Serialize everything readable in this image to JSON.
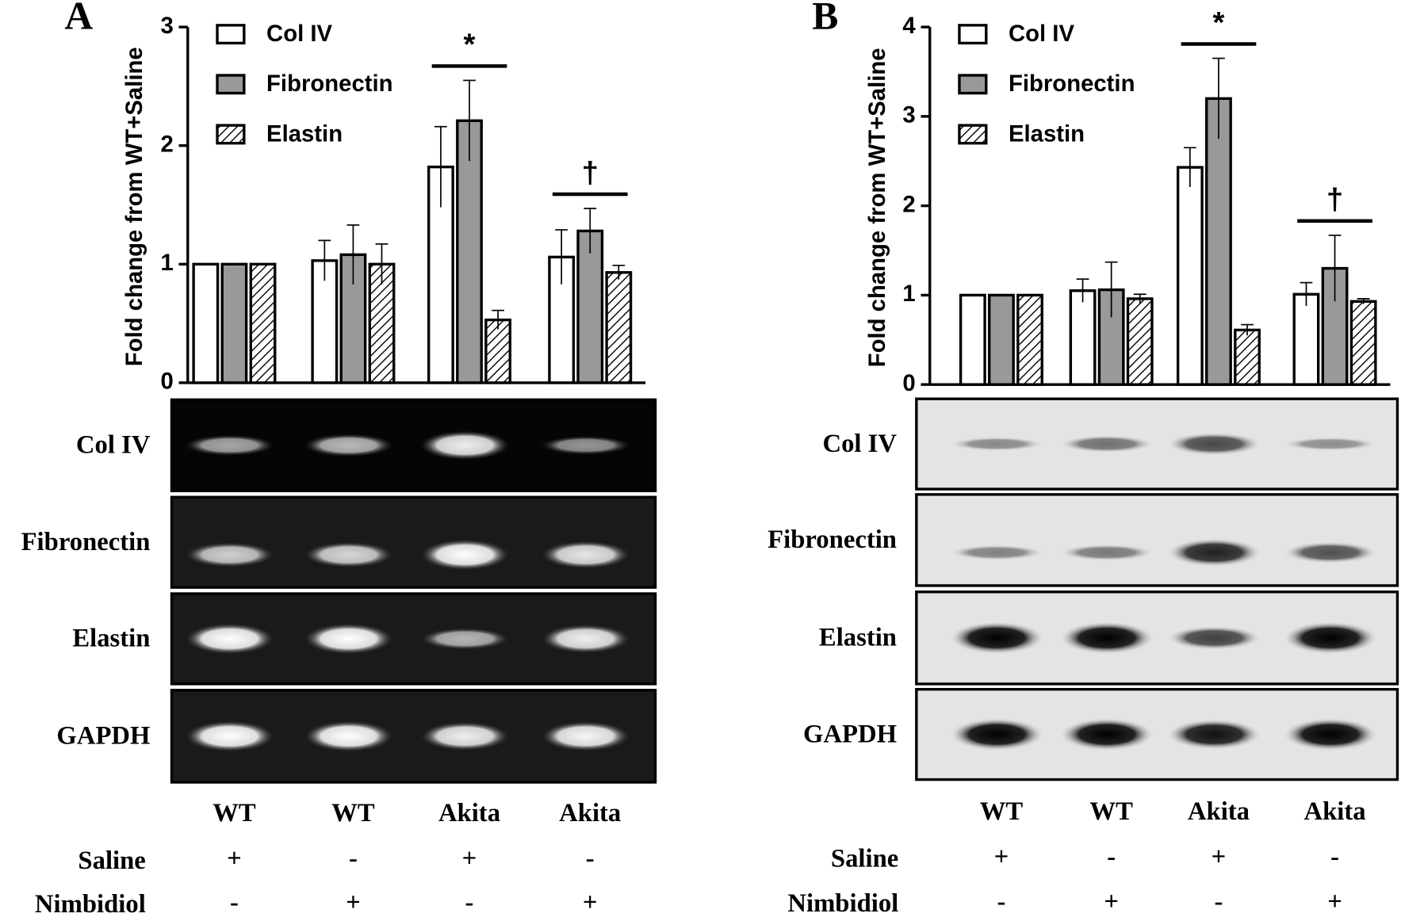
{
  "chart_data": [
    {
      "type": "bar",
      "panel_label": "A",
      "ylabel": "Fold change from WT+Saline",
      "categories": [
        "WT",
        "WT",
        "Akita",
        "Akita"
      ],
      "series": [
        {
          "name": "Col IV",
          "color": "#ffffff",
          "values": [
            1,
            1.03,
            1.82,
            1.06
          ],
          "errors": [
            0,
            0.17,
            0.34,
            0.23
          ]
        },
        {
          "name": "Fibronectin",
          "color": "#999999",
          "values": [
            1,
            1.08,
            2.21,
            1.28
          ],
          "errors": [
            0,
            0.25,
            0.34,
            0.19
          ]
        },
        {
          "name": "Elastin",
          "color": "#ffffff",
          "pattern": "hatch",
          "values": [
            1,
            1.0,
            0.53,
            0.93
          ],
          "errors": [
            0,
            0.17,
            0.08,
            0.06
          ]
        }
      ],
      "annotations": [
        null,
        null,
        "*",
        "†"
      ],
      "ylim": [
        0,
        3
      ],
      "yticks": [
        0,
        1,
        2,
        3
      ],
      "blots": [
        "Col IV",
        "Fibronectin",
        "Elastin",
        "GAPDH"
      ],
      "conditions": [
        {
          "name": "Saline",
          "marks": [
            "+",
            "-",
            "+",
            "-"
          ]
        },
        {
          "name": "Nimbidiol",
          "marks": [
            "-",
            "+",
            "-",
            "+"
          ]
        }
      ]
    },
    {
      "type": "bar",
      "panel_label": "B",
      "ylabel": "Fold change from WT+Saline",
      "categories": [
        "WT",
        "WT",
        "Akita",
        "Akita"
      ],
      "series": [
        {
          "name": "Col IV",
          "color": "#ffffff",
          "values": [
            1,
            1.05,
            2.43,
            1.01
          ],
          "errors": [
            0,
            0.13,
            0.22,
            0.13
          ]
        },
        {
          "name": "Fibronectin",
          "color": "#999999",
          "values": [
            1,
            1.06,
            3.2,
            1.3
          ],
          "errors": [
            0,
            0.31,
            0.45,
            0.37
          ]
        },
        {
          "name": "Elastin",
          "color": "#ffffff",
          "pattern": "hatch",
          "values": [
            1,
            0.96,
            0.61,
            0.93
          ],
          "errors": [
            0,
            0.05,
            0.06,
            0.03
          ]
        }
      ],
      "annotations": [
        null,
        null,
        "*",
        "†"
      ],
      "ylim": [
        0,
        4
      ],
      "yticks": [
        0,
        1,
        2,
        3,
        4
      ],
      "blots": [
        "Col IV",
        "Fibronectin",
        "Elastin",
        "GAPDH"
      ],
      "conditions": [
        {
          "name": "Saline",
          "marks": [
            "+",
            "-",
            "+",
            "-"
          ]
        },
        {
          "name": "Nimbidiol",
          "marks": [
            "-",
            "+",
            "-",
            "+"
          ]
        }
      ]
    }
  ]
}
